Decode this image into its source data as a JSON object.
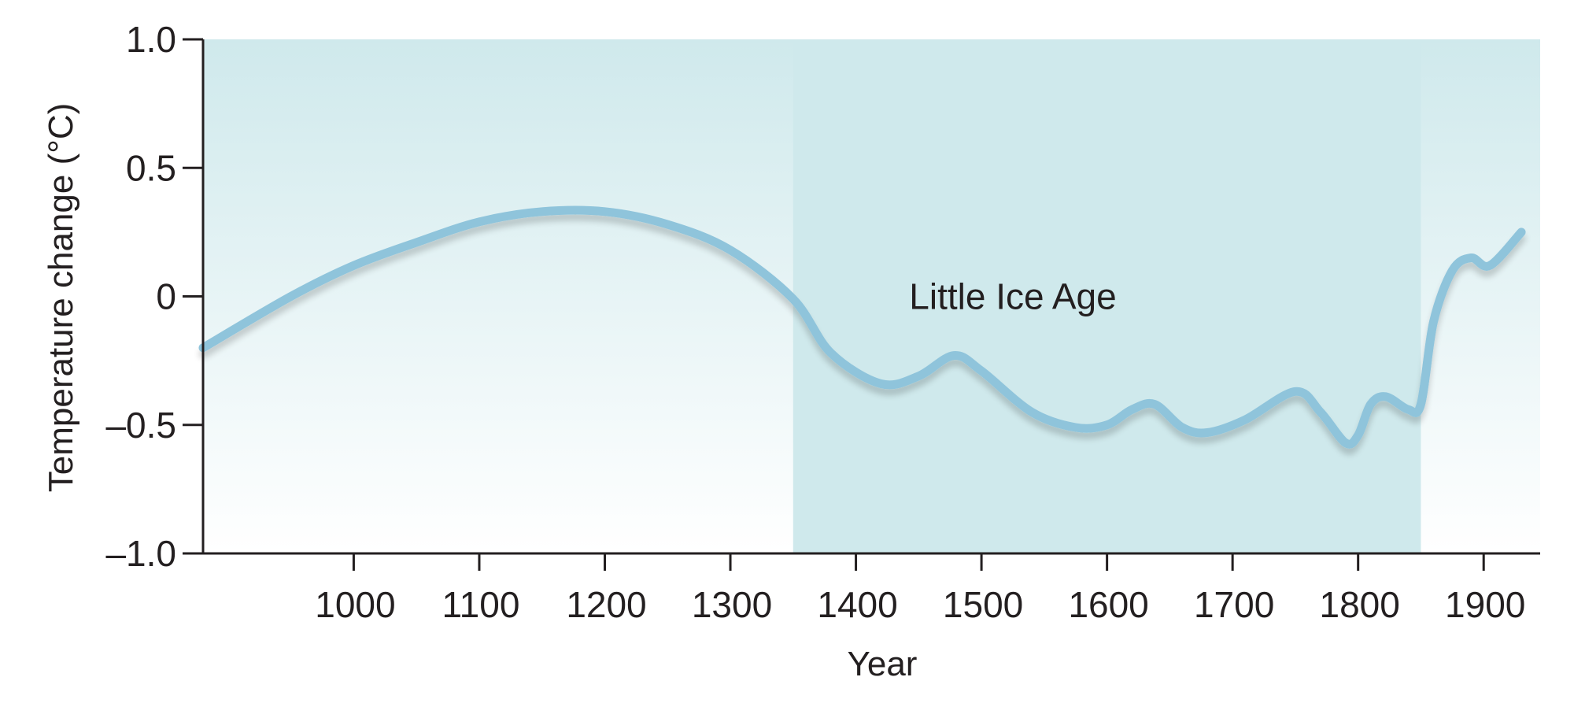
{
  "chart_data": {
    "type": "line",
    "xlabel": "Year",
    "ylabel": "Temperature change (°C)",
    "xlim": [
      880,
      1945
    ],
    "ylim": [
      -1.0,
      1.0
    ],
    "x_ticks": [
      1000,
      1100,
      1200,
      1300,
      1400,
      1500,
      1600,
      1700,
      1800,
      1900
    ],
    "y_ticks": [
      {
        "value": 1.0,
        "label": "1.0"
      },
      {
        "value": 0.5,
        "label": "0.5"
      },
      {
        "value": 0,
        "label": "0"
      },
      {
        "value": -0.5,
        "label": "–0.5"
      },
      {
        "value": -1.0,
        "label": "–1.0"
      }
    ],
    "grid": false,
    "annotations": [
      {
        "label": "Little Ice Age",
        "x_start": 1350,
        "x_end": 1850,
        "label_x": 1525,
        "label_y": 0.0
      }
    ],
    "series": [
      {
        "values": [
          {
            "x": 880,
            "y": -0.2
          },
          {
            "x": 950,
            "y": 0.0
          },
          {
            "x": 1000,
            "y": 0.12
          },
          {
            "x": 1050,
            "y": 0.21
          },
          {
            "x": 1100,
            "y": 0.29
          },
          {
            "x": 1150,
            "y": 0.33
          },
          {
            "x": 1200,
            "y": 0.33
          },
          {
            "x": 1250,
            "y": 0.28
          },
          {
            "x": 1300,
            "y": 0.18
          },
          {
            "x": 1350,
            "y": -0.01
          },
          {
            "x": 1380,
            "y": -0.22
          },
          {
            "x": 1420,
            "y": -0.34
          },
          {
            "x": 1450,
            "y": -0.31
          },
          {
            "x": 1478,
            "y": -0.23
          },
          {
            "x": 1500,
            "y": -0.29
          },
          {
            "x": 1540,
            "y": -0.45
          },
          {
            "x": 1575,
            "y": -0.51
          },
          {
            "x": 1600,
            "y": -0.5
          },
          {
            "x": 1620,
            "y": -0.44
          },
          {
            "x": 1638,
            "y": -0.42
          },
          {
            "x": 1660,
            "y": -0.51
          },
          {
            "x": 1680,
            "y": -0.53
          },
          {
            "x": 1710,
            "y": -0.48
          },
          {
            "x": 1750,
            "y": -0.37
          },
          {
            "x": 1770,
            "y": -0.45
          },
          {
            "x": 1790,
            "y": -0.57
          },
          {
            "x": 1800,
            "y": -0.54
          },
          {
            "x": 1810,
            "y": -0.42
          },
          {
            "x": 1822,
            "y": -0.39
          },
          {
            "x": 1840,
            "y": -0.44
          },
          {
            "x": 1850,
            "y": -0.42
          },
          {
            "x": 1860,
            "y": -0.1
          },
          {
            "x": 1875,
            "y": 0.1
          },
          {
            "x": 1890,
            "y": 0.15
          },
          {
            "x": 1905,
            "y": 0.12
          },
          {
            "x": 1930,
            "y": 0.25
          }
        ],
        "color": "#8fc4db"
      }
    ],
    "colors": {
      "panel_top": "#cfe9ec",
      "panel_bottom": "#ffffff",
      "ice_age_band": "#cfe9ec",
      "axis": "#231f20",
      "line": "#8fc4db"
    }
  }
}
